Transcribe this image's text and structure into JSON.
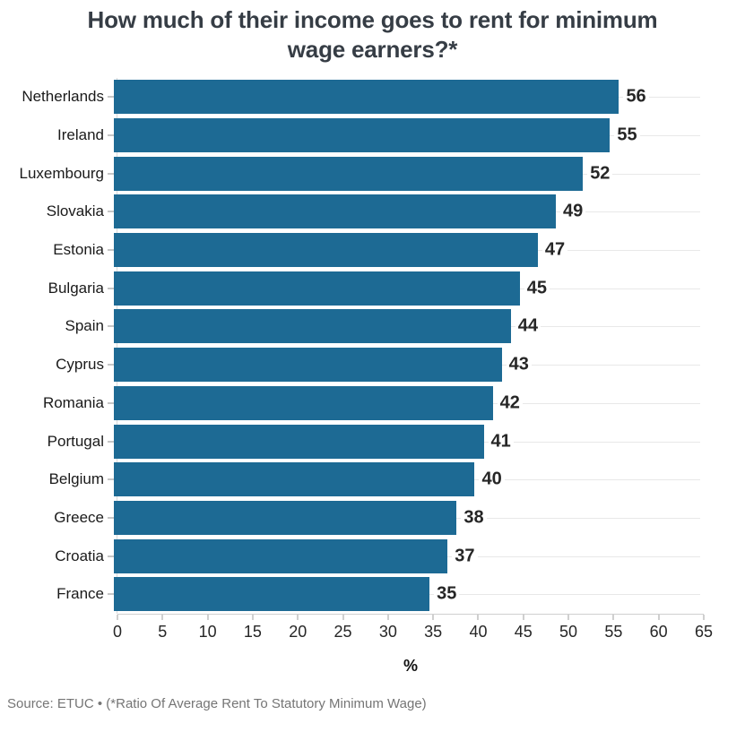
{
  "header": {
    "title_line1": "How much of their income goes to rent for minimum",
    "title_line2": "wage earners?*"
  },
  "chart_data": {
    "type": "bar",
    "orientation": "horizontal",
    "title": "How much of their income goes to rent for minimum wage earners?*",
    "categories": [
      "Netherlands",
      "Ireland",
      "Luxembourg",
      "Slovakia",
      "Estonia",
      "Bulgaria",
      "Spain",
      "Cyprus",
      "Romania",
      "Portugal",
      "Belgium",
      "Greece",
      "Croatia",
      "France"
    ],
    "values": [
      56,
      55,
      52,
      49,
      47,
      45,
      44,
      43,
      42,
      41,
      40,
      38,
      37,
      35
    ],
    "value_labels_shown": true,
    "xlabel": "%",
    "ylabel": "",
    "xlim": [
      0,
      65
    ],
    "x_ticks": [
      0,
      5,
      10,
      15,
      20,
      25,
      30,
      35,
      40,
      45,
      50,
      55,
      60,
      65
    ],
    "grid": true,
    "legend": false
  },
  "source": "Source: ETUC • (*Ratio Of Average Rent To Statutory Minimum Wage)",
  "colors": {
    "bar": "#1d6a94",
    "title": "#363d45",
    "category_label": "#1a1a1a",
    "value_label": "#262626",
    "grid": "#e8e8e8",
    "axis": "#cfcfcf",
    "source": "#757575",
    "background": "#ffffff"
  }
}
